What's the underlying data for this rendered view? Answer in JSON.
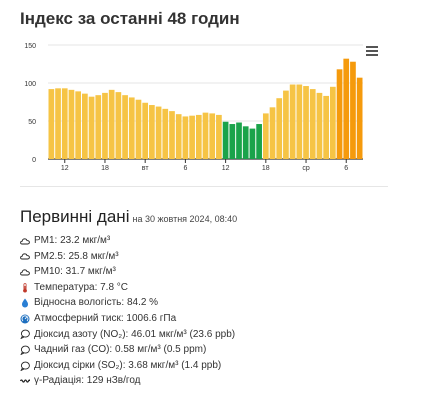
{
  "header": {
    "title": "Індекс за останні 48 годин"
  },
  "chart_data": {
    "type": "bar",
    "ylim": [
      0,
      150
    ],
    "y_ticks": [
      "0",
      "50",
      "100",
      "150"
    ],
    "x_ticks": [
      {
        "index": 2,
        "label": "12"
      },
      {
        "index": 8,
        "label": "18"
      },
      {
        "index": 14,
        "label": "вт"
      },
      {
        "index": 20,
        "label": "6"
      },
      {
        "index": 26,
        "label": "12"
      },
      {
        "index": 32,
        "label": "18"
      },
      {
        "index": 38,
        "label": "ср"
      },
      {
        "index": 44,
        "label": "6"
      }
    ],
    "values": [
      92,
      93,
      93,
      91,
      89,
      86,
      82,
      84,
      87,
      91,
      88,
      84,
      81,
      78,
      74,
      71,
      69,
      66,
      63,
      59,
      56,
      57,
      58,
      61,
      60,
      58,
      49,
      46,
      48,
      43,
      40,
      46,
      60,
      68,
      80,
      90,
      98,
      98,
      96,
      92,
      87,
      83,
      95,
      118,
      132,
      128,
      107
    ],
    "colors": [
      "#f6c445",
      "#f6c445",
      "#f6c445",
      "#f6c445",
      "#f6c445",
      "#f6c445",
      "#f6c445",
      "#f6c445",
      "#f6c445",
      "#f6c445",
      "#f6c445",
      "#f6c445",
      "#f6c445",
      "#f6c445",
      "#f6c445",
      "#f6c445",
      "#f6c445",
      "#f6c445",
      "#f6c445",
      "#f6c445",
      "#f6c445",
      "#f6c445",
      "#f6c445",
      "#f6c445",
      "#f6c445",
      "#f6c445",
      "#1aa34a",
      "#1aa34a",
      "#1aa34a",
      "#1aa34a",
      "#1aa34a",
      "#1aa34a",
      "#f6c445",
      "#f6c445",
      "#f6c445",
      "#f6c445",
      "#f6c445",
      "#f6c445",
      "#f6c445",
      "#f6c445",
      "#f6c445",
      "#f6c445",
      "#f6c445",
      "#f59a0c",
      "#f59a0c",
      "#f59a0c",
      "#f59a0c"
    ],
    "grid": true
  },
  "section": {
    "title": "Первинні дані",
    "date": "на 30 жовтня 2024, 08:40"
  },
  "readings": [
    {
      "icon": "cloud-icon",
      "html": "PM1: 23.2 мкг/м³"
    },
    {
      "icon": "cloud-icon",
      "html": "PM2.5: 25.8 мкг/м³"
    },
    {
      "icon": "cloud-icon",
      "html": "PM10: 31.7 мкг/м³"
    },
    {
      "icon": "thermometer-icon",
      "html": "Температура: 7.8 °C"
    },
    {
      "icon": "droplet-icon",
      "html": "Відносна вологість: 84.2 %"
    },
    {
      "icon": "gauge-icon",
      "html": "Атмосферний тиск: 1006.6 гПа"
    },
    {
      "icon": "speech-bubble-icon",
      "html": "Діоксид азоту (NO₂): 46.01 мкг/м³ (23.6 ppb)"
    },
    {
      "icon": "speech-bubble-icon",
      "html": "Чадний газ (CO): 0.58 мг/м³ (0.5 ppm)"
    },
    {
      "icon": "speech-bubble-icon",
      "html": "Діоксид сірки (SO₂): 3.68 мкг/м³ (1.4 ppb)"
    },
    {
      "icon": "radiation-wave-icon",
      "html": "γ-Радіація: 129 нЗв/год"
    }
  ]
}
